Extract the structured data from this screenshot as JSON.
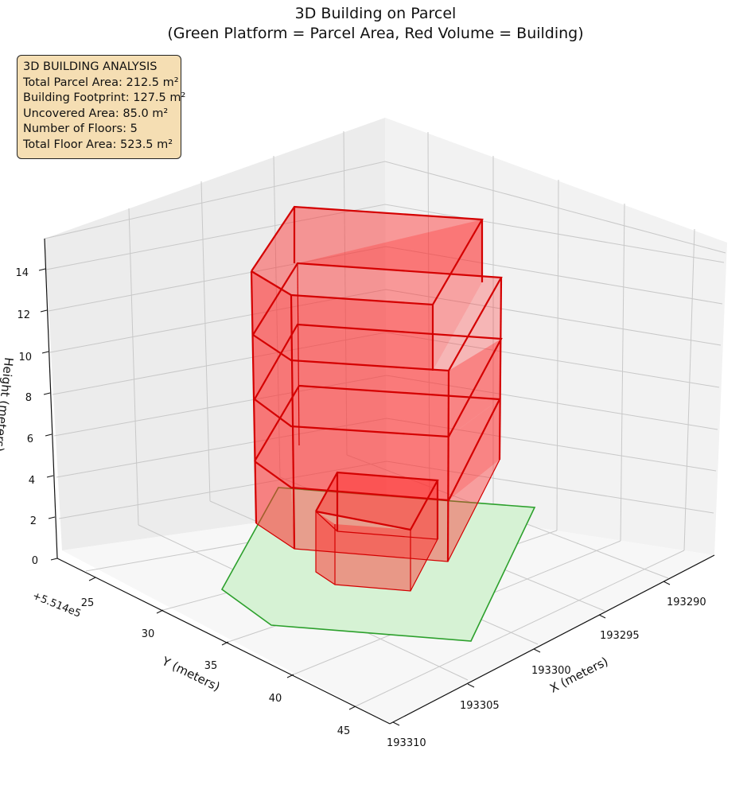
{
  "title": {
    "line1": "3D Building on Parcel",
    "line2": "(Green Platform = Parcel Area, Red Volume = Building)"
  },
  "info_box": {
    "heading": "3D BUILDING ANALYSIS",
    "lines": [
      "Total Parcel Area: 212.5 m²",
      "Building Footprint: 127.5 m²",
      "Uncovered Area: 85.0 m²",
      "Number of Floors: 5",
      "Total Floor Area: 523.5 m²"
    ]
  },
  "colors": {
    "parcel_fill": "#d6f2d4",
    "parcel_edge": "#2ca02c",
    "building_fill": "#ff2a2a",
    "building_edge": "#d40000",
    "pane_left": "#ececec",
    "pane_right": "#f2f2f2",
    "pane_floor": "#f7f7f7",
    "grid": "#c8c8c8"
  },
  "chart_data": {
    "type": "3d-polygons",
    "title": "3D Building on Parcel\n(Green Platform = Parcel Area, Red Volume = Building)",
    "xlabel": "X (meters)",
    "ylabel": "Y (meters)",
    "zlabel": "Height (meters)",
    "y_offset_label": "+5.514e5",
    "x_ticks": [
      "193290",
      "193295",
      "193300",
      "193305",
      "193310"
    ],
    "y_ticks": [
      "25",
      "30",
      "35",
      "40",
      "45"
    ],
    "z_ticks": [
      "0",
      "2",
      "4",
      "6",
      "8",
      "10",
      "12",
      "14"
    ],
    "x_range": [
      193286,
      193310
    ],
    "y_range": [
      22,
      47
    ],
    "z_range": [
      0,
      15
    ],
    "grid": true,
    "parcel": {
      "polygon": [
        [
          193297.5,
          30.6
        ],
        [
          193304.8,
          39.5
        ],
        [
          193310.0,
          31.5
        ],
        [
          193292.3,
          24.7
        ]
      ],
      "z": 0
    },
    "building": {
      "footprint": [
        [
          193290.4,
          31.1
        ],
        [
          193291.3,
          29.2
        ],
        [
          193298.3,
          34.3
        ],
        [
          193296.8,
          36.6
        ],
        [
          193298.1,
          40.7
        ],
        [
          193300.7,
          41.2
        ],
        [
          193301.2,
          39.0
        ],
        [
          193302.9,
          38.7
        ]
      ],
      "floors": 5,
      "floor_heights": [
        0,
        3,
        6,
        9,
        12,
        15
      ],
      "lower_block": {
        "x_range": [
          193301.5,
          193303.5
        ],
        "y_range": [
          31.0,
          38.5
        ],
        "z_range": [
          0,
          4
        ]
      }
    }
  }
}
